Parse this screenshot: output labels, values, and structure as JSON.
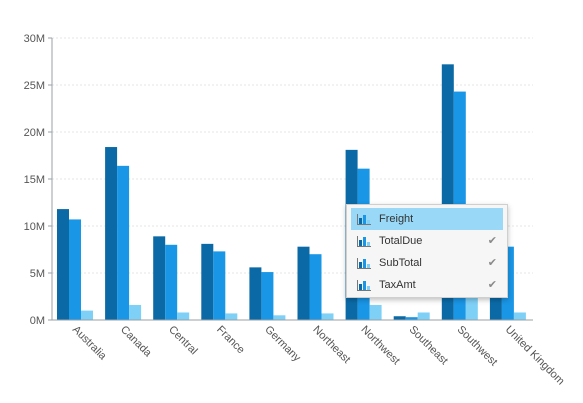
{
  "chart_data": {
    "type": "bar",
    "categories": [
      "Australia",
      "Canada",
      "Central",
      "France",
      "Germany",
      "Northeast",
      "Northwest",
      "Southeast",
      "Southwest",
      "United Kingdom"
    ],
    "series": [
      {
        "values": [
          11.8,
          18.4,
          8.9,
          8.1,
          5.6,
          7.8,
          18.1,
          0.4,
          27.2,
          7.8
        ],
        "color": "#0b6aa6"
      },
      {
        "values": [
          10.7,
          16.4,
          8.0,
          7.3,
          5.1,
          7.0,
          16.1,
          0.3,
          24.3,
          7.8
        ],
        "color": "#1a96e6"
      },
      {
        "values": [
          1.0,
          1.6,
          0.8,
          0.7,
          0.5,
          0.7,
          1.6,
          0.8,
          2.4,
          0.8
        ],
        "color": "#7fd0f7"
      }
    ],
    "y_ticks": [
      {
        "value": 0,
        "label": "0M"
      },
      {
        "value": 5,
        "label": "5M"
      },
      {
        "value": 10,
        "label": "10M"
      },
      {
        "value": 15,
        "label": "15M"
      },
      {
        "value": 20,
        "label": "20M"
      },
      {
        "value": 25,
        "label": "25M"
      },
      {
        "value": 30,
        "label": "30M"
      }
    ],
    "ylim": [
      0,
      30
    ],
    "grid": true
  },
  "menu": {
    "items": [
      {
        "label": "Freight",
        "checked": false,
        "active": true
      },
      {
        "label": "TotalDue",
        "checked": true,
        "active": false
      },
      {
        "label": "SubTotal",
        "checked": true,
        "active": false
      },
      {
        "label": "TaxAmt",
        "checked": true,
        "active": false
      }
    ],
    "check_glyph": "✔"
  },
  "icons": {
    "menu_item": "bar-chart-icon"
  }
}
